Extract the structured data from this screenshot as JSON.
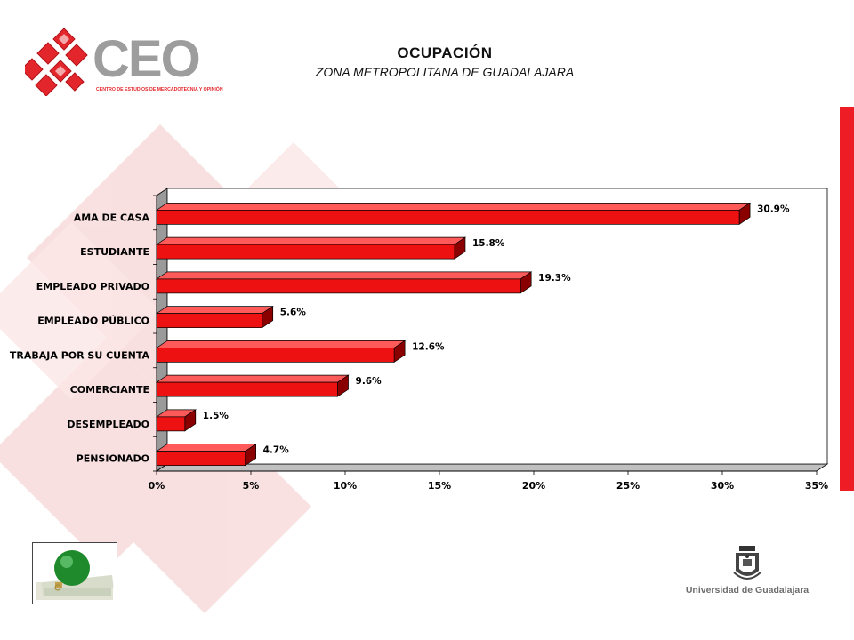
{
  "header": {
    "title": "OCUPACIÓN",
    "subtitle": "ZONA METROPOLITANA DE GUADALAJARA"
  },
  "logo": {
    "text": "CEO",
    "tagline": "CENTRO DE ESTUDIOS DE MERCADOTECNIA Y OPINIÓN",
    "icon": "red-diamond-cluster-icon"
  },
  "footer": {
    "university": "Universidad de Guadalajara",
    "seal_icon": "university-seal-icon",
    "thumbnail_icon": "green-ornament-on-money-icon"
  },
  "colors": {
    "bar": "#ee1111",
    "bar_dark": "#8a0000",
    "bar_top": "#ff5a5a",
    "accent": "#ee1c25",
    "logo_gray": "#9d9d9d"
  },
  "chart_data": {
    "type": "bar",
    "orientation": "horizontal",
    "categories": [
      "AMA DE CASA",
      "ESTUDIANTE",
      "EMPLEADO PRIVADO",
      "EMPLEADO PÚBLICO",
      "TRABAJA POR SU CUENTA",
      "COMERCIANTE",
      "DESEMPLEADO",
      "PENSIONADO"
    ],
    "values": [
      30.9,
      15.8,
      19.3,
      5.6,
      12.6,
      9.6,
      1.5,
      4.7
    ],
    "labels": [
      "30.9%",
      "15.8%",
      "19.3%",
      "5.6%",
      "12.6%",
      "9.6%",
      "1.5%",
      "4.7%"
    ],
    "xticks": [
      "0%",
      "5%",
      "10%",
      "15%",
      "20%",
      "25%",
      "30%",
      "35%"
    ],
    "xlim": [
      0,
      35
    ],
    "grid": false,
    "legend": "none",
    "style": "3d"
  }
}
